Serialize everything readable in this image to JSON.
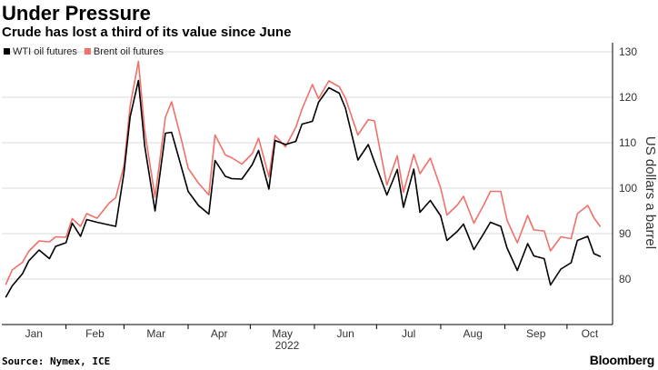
{
  "header": {
    "title": "Under Pressure",
    "subtitle": "Crude has lost a third of its value since June"
  },
  "footer": {
    "source": "Source: Nymex, ICE",
    "brand": "Bloomberg"
  },
  "colors": {
    "wti": "#000000",
    "brent": "#f0706a",
    "grid": "#d9d9d9",
    "axis": "#000000"
  },
  "chart_data": {
    "type": "line",
    "title": "Under Pressure",
    "subtitle": "Crude has lost a third of its value since June",
    "ylabel": "US dollars a barrel",
    "xlabel": "",
    "year_label": "2022",
    "ylim": [
      70,
      132
    ],
    "yticks": [
      80,
      90,
      100,
      110,
      120,
      130
    ],
    "y_axis_side": "right",
    "grid": "horizontal",
    "legend_position": "top-left",
    "month_ticks": [
      "Jan",
      "Feb",
      "Mar",
      "Apr",
      "May",
      "Jun",
      "Jul",
      "Aug",
      "Sep",
      "Oct"
    ],
    "x": [
      "2022-01-03",
      "2022-01-06",
      "2022-01-11",
      "2022-01-14",
      "2022-01-19",
      "2022-01-24",
      "2022-01-27",
      "2022-02-01",
      "2022-02-04",
      "2022-02-08",
      "2022-02-11",
      "2022-02-16",
      "2022-02-22",
      "2022-02-25",
      "2022-03-01",
      "2022-03-04",
      "2022-03-08",
      "2022-03-11",
      "2022-03-16",
      "2022-03-21",
      "2022-03-24",
      "2022-03-29",
      "2022-04-01",
      "2022-04-06",
      "2022-04-11",
      "2022-04-14",
      "2022-04-19",
      "2022-04-22",
      "2022-04-27",
      "2022-05-02",
      "2022-05-05",
      "2022-05-10",
      "2022-05-13",
      "2022-05-18",
      "2022-05-23",
      "2022-05-26",
      "2022-05-31",
      "2022-06-03",
      "2022-06-08",
      "2022-06-13",
      "2022-06-16",
      "2022-06-22",
      "2022-06-27",
      "2022-06-30",
      "2022-07-06",
      "2022-07-11",
      "2022-07-14",
      "2022-07-19",
      "2022-07-22",
      "2022-07-27",
      "2022-08-01",
      "2022-08-04",
      "2022-08-09",
      "2022-08-12",
      "2022-08-17",
      "2022-08-22",
      "2022-08-25",
      "2022-08-30",
      "2022-09-02",
      "2022-09-07",
      "2022-09-12",
      "2022-09-15",
      "2022-09-20",
      "2022-09-23",
      "2022-09-28",
      "2022-10-03",
      "2022-10-06",
      "2022-10-11",
      "2022-10-14",
      "2022-10-17"
    ],
    "series": [
      {
        "name": "WTI oil futures",
        "color": "#000000",
        "values": [
          76.1,
          78.5,
          81.2,
          84.0,
          86.4,
          84.5,
          87.2,
          88.0,
          92.3,
          89.4,
          93.1,
          92.5,
          91.9,
          91.6,
          103.4,
          115.7,
          123.7,
          109.3,
          95.0,
          112.1,
          112.3,
          104.2,
          99.3,
          96.2,
          94.3,
          106.1,
          102.6,
          102.1,
          102.0,
          105.2,
          108.3,
          99.8,
          110.5,
          109.6,
          110.3,
          114.1,
          114.7,
          118.9,
          122.1,
          120.9,
          117.6,
          106.2,
          109.6,
          105.8,
          98.5,
          104.1,
          95.8,
          104.2,
          94.7,
          97.3,
          93.9,
          88.5,
          90.5,
          92.1,
          86.5,
          90.2,
          92.5,
          91.6,
          86.9,
          81.9,
          87.8,
          85.1,
          84.5,
          78.7,
          82.2,
          83.6,
          88.5,
          89.4,
          85.6,
          85.0
        ]
      },
      {
        "name": "Brent oil futures",
        "color": "#f0706a",
        "values": [
          78.9,
          82.0,
          83.7,
          86.1,
          88.4,
          88.2,
          89.3,
          89.2,
          93.3,
          91.6,
          94.4,
          93.4,
          96.8,
          97.9,
          104.9,
          118.1,
          127.9,
          112.7,
          98.0,
          115.6,
          119.0,
          110.2,
          104.4,
          101.1,
          98.5,
          111.7,
          107.3,
          106.7,
          105.3,
          107.6,
          111.0,
          102.5,
          111.6,
          109.1,
          113.4,
          117.4,
          122.8,
          119.7,
          123.6,
          122.3,
          119.8,
          111.7,
          115.1,
          114.8,
          100.7,
          107.1,
          99.1,
          107.4,
          103.2,
          106.6,
          100.0,
          94.1,
          96.3,
          98.2,
          92.3,
          96.5,
          99.3,
          99.3,
          93.0,
          88.0,
          94.0,
          90.8,
          90.6,
          86.2,
          89.3,
          88.9,
          94.4,
          96.2,
          93.5,
          91.6
        ]
      }
    ]
  }
}
